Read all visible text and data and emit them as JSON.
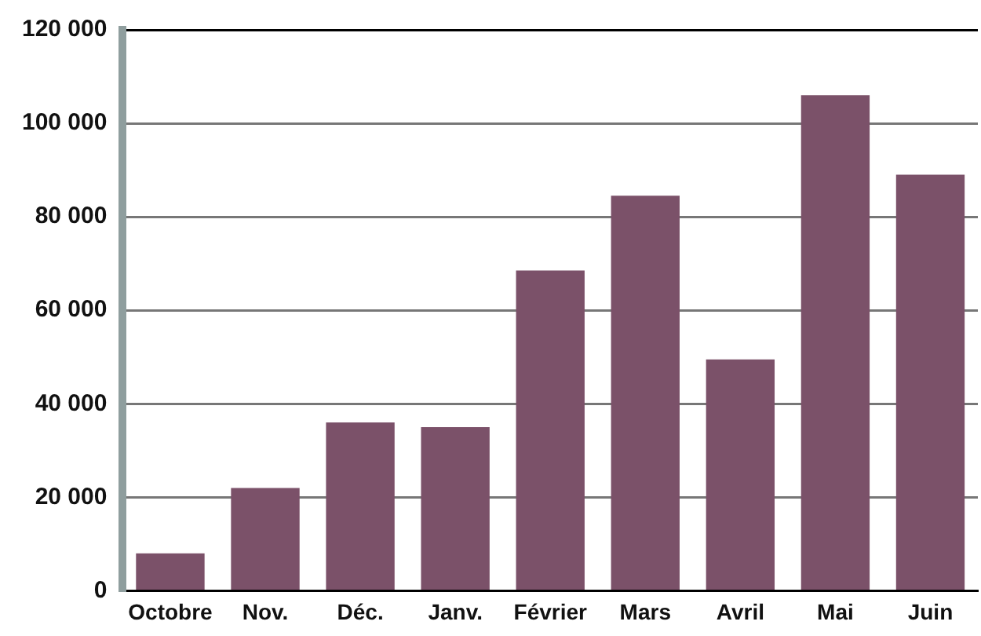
{
  "chart_data": {
    "type": "bar",
    "categories": [
      "Octobre",
      "Nov.",
      "Déc.",
      "Janv.",
      "Février",
      "Mars",
      "Avril",
      "Mai",
      "Juin"
    ],
    "values": [
      8000,
      22000,
      36000,
      35000,
      68500,
      84500,
      49500,
      106000,
      89000
    ],
    "color": "#7b5169",
    "ylim": [
      0,
      120000
    ],
    "yticks": [
      {
        "value": 0,
        "label": "0"
      },
      {
        "value": 20000,
        "label": "20 000"
      },
      {
        "value": 40000,
        "label": "40 000"
      },
      {
        "value": 60000,
        "label": "60 000"
      },
      {
        "value": 80000,
        "label": "80 000"
      },
      {
        "value": 100000,
        "label": "100 000"
      },
      {
        "value": 120000,
        "label": "120 000"
      }
    ],
    "grid": "y",
    "legend": false
  }
}
